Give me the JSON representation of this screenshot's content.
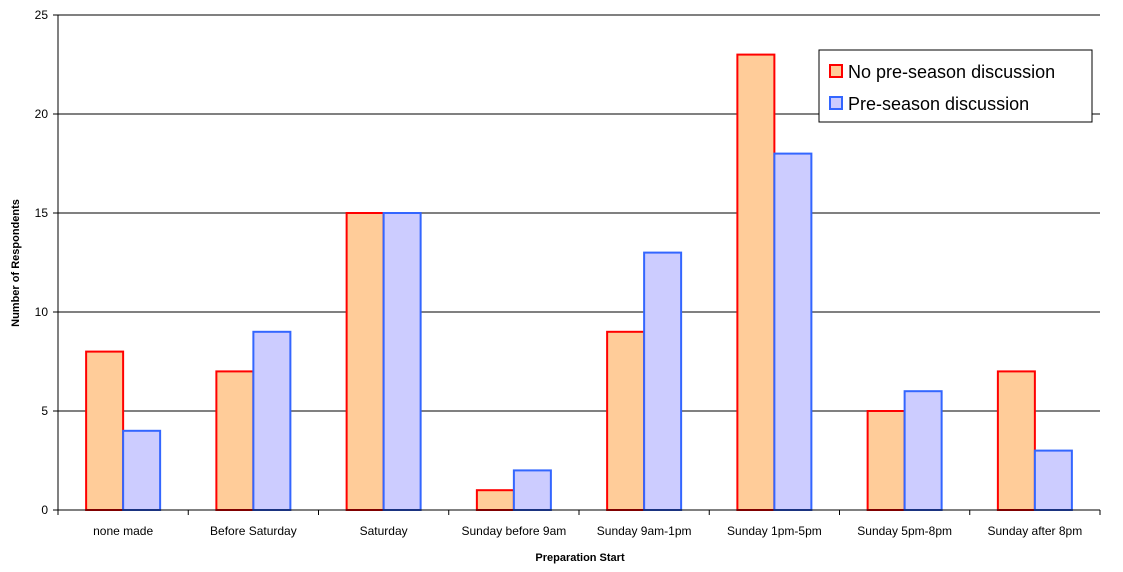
{
  "chart_data": {
    "type": "bar",
    "title": "",
    "xlabel": "Preparation Start",
    "ylabel": "Number of Respondents",
    "ylim": [
      0,
      25
    ],
    "yticks": [
      0,
      5,
      10,
      15,
      20,
      25
    ],
    "grid": true,
    "legend_position": "top-right",
    "categories": [
      "none made",
      "Before Saturday",
      "Saturday",
      "Sunday before 9am",
      "Sunday 9am-1pm",
      "Sunday 1pm-5pm",
      "Sunday 5pm-8pm",
      "Sunday after 8pm"
    ],
    "series": [
      {
        "name": "No pre-season discussion",
        "values": [
          8,
          7,
          15,
          1,
          9,
          23,
          5,
          7
        ],
        "fill": "#FFCC99",
        "stroke": "#FF0000"
      },
      {
        "name": "Pre-season discussion",
        "values": [
          4,
          9,
          15,
          2,
          13,
          18,
          6,
          3
        ],
        "fill": "#CCCCFF",
        "stroke": "#3366FF"
      }
    ]
  }
}
